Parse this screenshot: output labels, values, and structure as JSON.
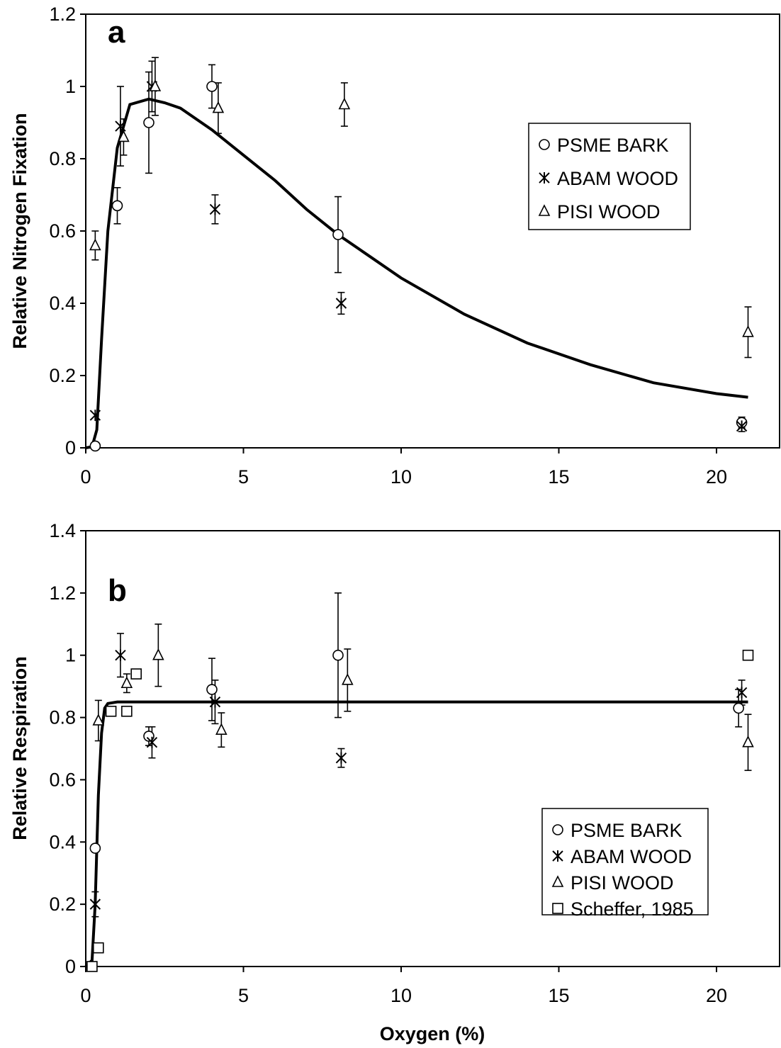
{
  "chart_data": [
    {
      "type": "scatter",
      "panel_label": "a",
      "xlabel": "",
      "ylabel": "Relative Nitrogen Fixation",
      "xlim": [
        0,
        22
      ],
      "ylim": [
        0,
        1.2
      ],
      "x_ticks": [
        0,
        5,
        10,
        15,
        20
      ],
      "y_ticks": [
        0,
        0.2,
        0.4,
        0.6,
        0.8,
        1,
        1.2
      ],
      "x_tick_labels": [
        "0",
        "5",
        "10",
        "15",
        "20"
      ],
      "y_tick_labels": [
        "0",
        "0.2",
        "0.4",
        "0.6",
        "0.8",
        "1",
        "1.2"
      ],
      "legend_position": "top-right",
      "series": [
        {
          "name": "PSME BARK",
          "marker": "circle",
          "points": [
            {
              "x": 0.3,
              "y": 0.005,
              "err": 0
            },
            {
              "x": 1.0,
              "y": 0.67,
              "err": 0.05
            },
            {
              "x": 2.0,
              "y": 0.9,
              "err": 0.14
            },
            {
              "x": 4.0,
              "y": 1.0,
              "err": 0.06
            },
            {
              "x": 8.0,
              "y": 0.59,
              "err": 0.105
            },
            {
              "x": 20.8,
              "y": 0.07,
              "err": 0.015
            }
          ]
        },
        {
          "name": "ABAM WOOD",
          "marker": "asterisk",
          "points": [
            {
              "x": 0.3,
              "y": 0.09,
              "err": 0
            },
            {
              "x": 1.1,
              "y": 0.89,
              "err": 0.11
            },
            {
              "x": 2.1,
              "y": 1.0,
              "err": 0.07
            },
            {
              "x": 4.1,
              "y": 0.66,
              "err": 0.04
            },
            {
              "x": 8.1,
              "y": 0.4,
              "err": 0.03
            },
            {
              "x": 20.8,
              "y": 0.06,
              "err": 0.015
            }
          ]
        },
        {
          "name": "PISI WOOD",
          "marker": "triangle",
          "points": [
            {
              "x": 0.3,
              "y": 0.56,
              "err": 0.04
            },
            {
              "x": 1.2,
              "y": 0.86,
              "err": 0.05
            },
            {
              "x": 2.2,
              "y": 1.0,
              "err": 0.08
            },
            {
              "x": 4.2,
              "y": 0.94,
              "err": 0.07
            },
            {
              "x": 8.2,
              "y": 0.95,
              "err": 0.06
            },
            {
              "x": 21.0,
              "y": 0.32,
              "err": 0.07
            }
          ]
        }
      ],
      "fit_curve": {
        "x": [
          0,
          0.2,
          0.35,
          0.5,
          0.7,
          1.0,
          1.4,
          2.0,
          2.5,
          3,
          4,
          5,
          6,
          7,
          8,
          9,
          10,
          12,
          14,
          16,
          18,
          20,
          21
        ],
        "y": [
          0,
          0.003,
          0.05,
          0.3,
          0.6,
          0.83,
          0.95,
          0.965,
          0.955,
          0.94,
          0.88,
          0.81,
          0.74,
          0.66,
          0.59,
          0.53,
          0.47,
          0.37,
          0.29,
          0.23,
          0.18,
          0.15,
          0.14
        ]
      }
    },
    {
      "type": "scatter",
      "panel_label": "b",
      "xlabel": "Oxygen (%)",
      "ylabel": "Relative Respiration",
      "xlim": [
        0,
        22
      ],
      "ylim": [
        0,
        1.4
      ],
      "x_ticks": [
        0,
        5,
        10,
        15,
        20
      ],
      "y_ticks": [
        0,
        0.2,
        0.4,
        0.6,
        0.8,
        1,
        1.2,
        1.4
      ],
      "x_tick_labels": [
        "0",
        "5",
        "10",
        "15",
        "20"
      ],
      "y_tick_labels": [
        "0",
        "0.2",
        "0.4",
        "0.6",
        "0.8",
        "1",
        "1.2",
        "1.4"
      ],
      "legend_position": "bottom-right",
      "series": [
        {
          "name": "PSME BARK",
          "marker": "circle",
          "points": [
            {
              "x": 0.3,
              "y": 0.38,
              "err": 0
            },
            {
              "x": 2.0,
              "y": 0.74,
              "err": 0.03
            },
            {
              "x": 4.0,
              "y": 0.89,
              "err": 0.1
            },
            {
              "x": 8.0,
              "y": 1.0,
              "err": 0.2
            },
            {
              "x": 20.7,
              "y": 0.83,
              "err": 0.06
            }
          ]
        },
        {
          "name": "ABAM WOOD",
          "marker": "asterisk",
          "points": [
            {
              "x": 0.3,
              "y": 0.2,
              "err": 0.04
            },
            {
              "x": 1.1,
              "y": 1.0,
              "err": 0.07
            },
            {
              "x": 2.1,
              "y": 0.72,
              "err": 0.05
            },
            {
              "x": 4.1,
              "y": 0.85,
              "err": 0.07
            },
            {
              "x": 8.1,
              "y": 0.67,
              "err": 0.03
            },
            {
              "x": 20.8,
              "y": 0.88,
              "err": 0.04
            }
          ]
        },
        {
          "name": "PISI WOOD",
          "marker": "triangle",
          "points": [
            {
              "x": 0.4,
              "y": 0.79,
              "err": 0.065
            },
            {
              "x": 1.3,
              "y": 0.91,
              "err": 0.03
            },
            {
              "x": 2.3,
              "y": 1.0,
              "err": 0.1
            },
            {
              "x": 4.3,
              "y": 0.76,
              "err": 0.055
            },
            {
              "x": 8.3,
              "y": 0.92,
              "err": 0.1
            },
            {
              "x": 21.0,
              "y": 0.72,
              "err": 0.09
            }
          ]
        },
        {
          "name": "Scheffer, 1985",
          "marker": "square",
          "points": [
            {
              "x": 0.2,
              "y": 0.0,
              "err": 0
            },
            {
              "x": 0.4,
              "y": 0.06,
              "err": 0
            },
            {
              "x": 0.8,
              "y": 0.82,
              "err": 0
            },
            {
              "x": 1.3,
              "y": 0.82,
              "err": 0
            },
            {
              "x": 1.6,
              "y": 0.94,
              "err": 0
            },
            {
              "x": 21.0,
              "y": 1.0,
              "err": 0
            }
          ]
        }
      ],
      "fit_curve": {
        "x": [
          0,
          0.2,
          0.3,
          0.4,
          0.5,
          0.6,
          0.7,
          1.0,
          2,
          5,
          10,
          15,
          20,
          21
        ],
        "y": [
          0,
          0.02,
          0.2,
          0.55,
          0.75,
          0.83,
          0.845,
          0.85,
          0.85,
          0.85,
          0.85,
          0.85,
          0.85,
          0.85
        ]
      }
    }
  ]
}
